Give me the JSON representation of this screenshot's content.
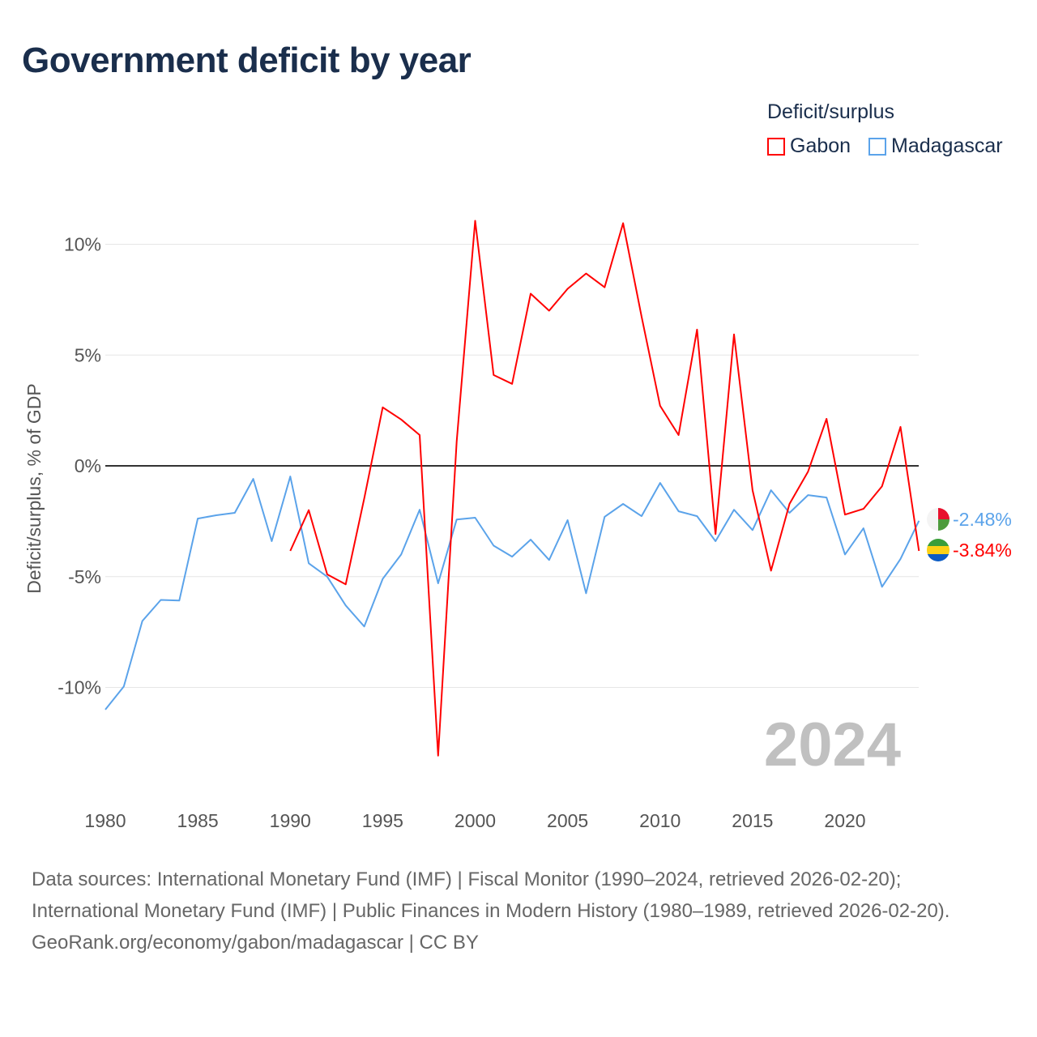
{
  "title": "Government deficit by year",
  "legend": {
    "title": "Deficit/surplus",
    "items": [
      {
        "name": "Gabon",
        "color": "#ff0000"
      },
      {
        "name": "Madagascar",
        "color": "#5ba3ea"
      }
    ]
  },
  "footer": {
    "line1": "Data sources: International Monetary Fund (IMF) | Fiscal Monitor (1990–2024, retrieved 2026-02-20); International Monetary Fund (IMF) | Public Finances in Modern History (1980–1989, retrieved 2026-02-20).",
    "line2": "GeoRank.org/economy/gabon/madagascar | CC BY"
  },
  "chart_data": {
    "type": "line",
    "title": "Government deficit by year",
    "xlabel": "",
    "ylabel": "Deficit/surplus, % of GDP",
    "xlim": [
      1980,
      2024
    ],
    "ylim": [
      -14,
      12
    ],
    "x_ticks": [
      "1980",
      "1985",
      "1990",
      "1995",
      "2000",
      "2005",
      "2010",
      "2015",
      "2020"
    ],
    "y_ticks": [
      {
        "value": 10,
        "label": "10%"
      },
      {
        "value": 5,
        "label": "5%"
      },
      {
        "value": 0,
        "label": "0%"
      },
      {
        "value": -5,
        "label": "-5%"
      },
      {
        "value": -10,
        "label": "-10%"
      }
    ],
    "year_label": "2024",
    "series": [
      {
        "name": "Gabon",
        "color": "#ff0000",
        "start": 1990,
        "end_label": "-3.84%",
        "values": [
          -3.84,
          -2.0,
          -4.9,
          -5.35,
          -1.47,
          2.64,
          2.09,
          1.39,
          -13.08,
          1.1,
          11.06,
          4.1,
          3.7,
          7.77,
          7.0,
          7.99,
          8.68,
          8.06,
          10.95,
          6.74,
          2.71,
          1.39,
          6.15,
          -3.08,
          5.93,
          -1.1,
          -4.73,
          -1.72,
          -0.26,
          2.12,
          -2.2,
          -1.94,
          -0.92,
          1.76,
          -3.84
        ]
      },
      {
        "name": "Madagascar",
        "color": "#5ba3ea",
        "start": 1980,
        "end_label": "-2.48%",
        "values": [
          -11.0,
          -9.96,
          -7.0,
          -6.05,
          -6.08,
          -2.38,
          -2.23,
          -2.12,
          -0.59,
          -3.4,
          -0.48,
          -4.4,
          -5.0,
          -6.3,
          -7.25,
          -5.1,
          -4.0,
          -1.98,
          -5.3,
          -2.42,
          -2.34,
          -3.6,
          -4.1,
          -3.33,
          -4.25,
          -2.45,
          -5.75,
          -2.3,
          -1.72,
          -2.27,
          -0.77,
          -2.05,
          -2.27,
          -3.4,
          -1.98,
          -2.9,
          -1.1,
          -2.12,
          -1.32,
          -1.43,
          -4.0,
          -2.82,
          -5.46,
          -4.2,
          -2.48
        ]
      }
    ]
  }
}
